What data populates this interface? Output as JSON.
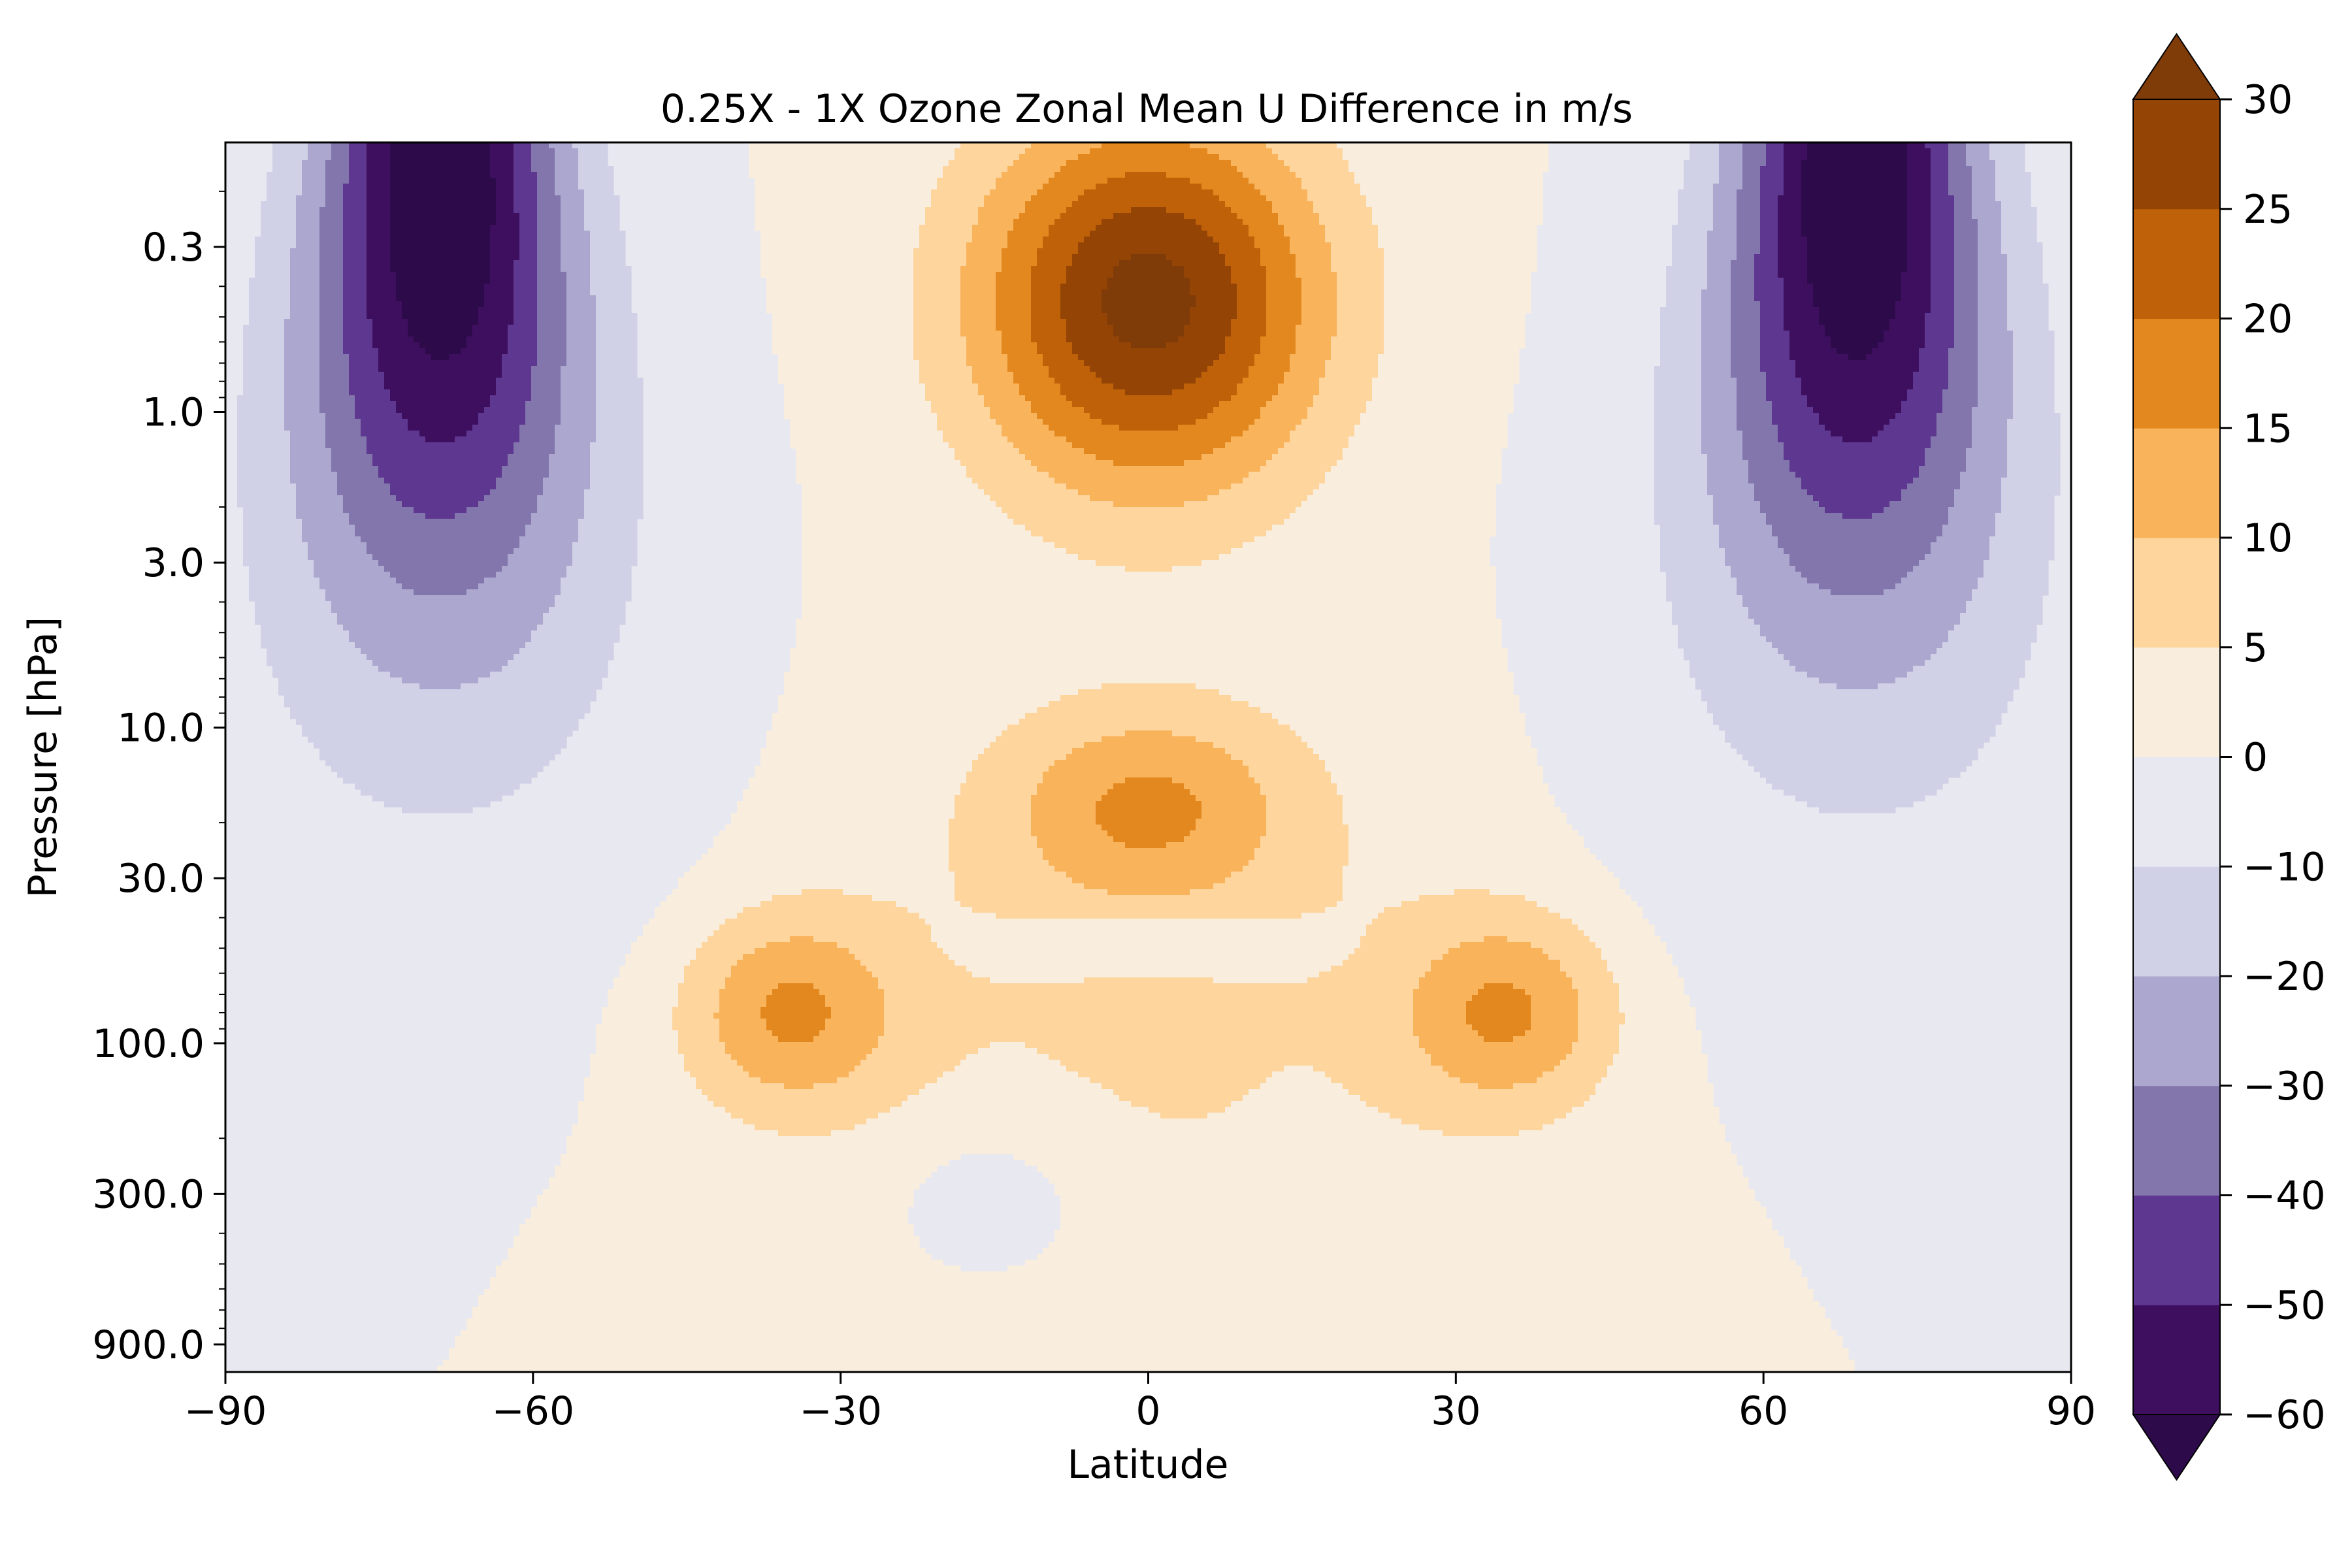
{
  "chart_data": {
    "type": "contourf",
    "title": "0.25X - 1X Ozone Zonal Mean U Difference in m/s",
    "xlabel": "Latitude",
    "ylabel": "Pressure [hPa]",
    "xlim": [
      -90,
      90
    ],
    "ylim": [
      900,
      0.1
    ],
    "y_scale": "log",
    "y_inverted": true,
    "x_ticks": [
      -90,
      -60,
      -30,
      0,
      30,
      60,
      90
    ],
    "x_tick_labels": [
      "−90",
      "−60",
      "−30",
      "0",
      "30",
      "60",
      "90"
    ],
    "y_ticks": [
      0.3,
      1.0,
      3.0,
      10.0,
      30.0,
      100.0,
      300.0,
      900.0
    ],
    "y_tick_labels": [
      "0.3",
      "1.0",
      "3.0",
      "10.0",
      "30.0",
      "100.0",
      "300.0",
      "900.0"
    ],
    "colorbar": {
      "levels": [
        -60,
        -50,
        -40,
        -30,
        -20,
        -10,
        0,
        5,
        10,
        15,
        20,
        25,
        30
      ],
      "tick_labels": [
        "−60",
        "−50",
        "−40",
        "−30",
        "−20",
        "−10",
        "0",
        "5",
        "10",
        "15",
        "20",
        "25",
        "30"
      ],
      "colors": [
        "#3f0f5f",
        "#5e3790",
        "#8376ad",
        "#aca7cf",
        "#d0d1e6",
        "#e8e8f1",
        "#f9edde",
        "#fdd59d",
        "#f9b35b",
        "#e3881e",
        "#bf6109",
        "#944506"
      ],
      "under_color": "#2d0a4a",
      "over_color": "#7f3b08",
      "extend": "both"
    },
    "features": [
      {
        "kind": "jet_anomaly",
        "lat": -69,
        "pressure_hPa": 0.3,
        "value": -60
      },
      {
        "kind": "jet_anomaly",
        "lat": 69,
        "pressure_hPa": 0.3,
        "value": -60
      },
      {
        "kind": "equatorial_maximum",
        "lat": 0,
        "pressure_hPa": 0.5,
        "value": 25
      },
      {
        "kind": "equatorial_local_max",
        "lat": 0,
        "pressure_hPa": 20,
        "value": 10
      },
      {
        "kind": "subtropical_max",
        "lat": -35,
        "pressure_hPa": 80,
        "value": 10
      },
      {
        "kind": "subtropical_max",
        "lat": 35,
        "pressure_hPa": 80,
        "value": 10
      }
    ]
  }
}
